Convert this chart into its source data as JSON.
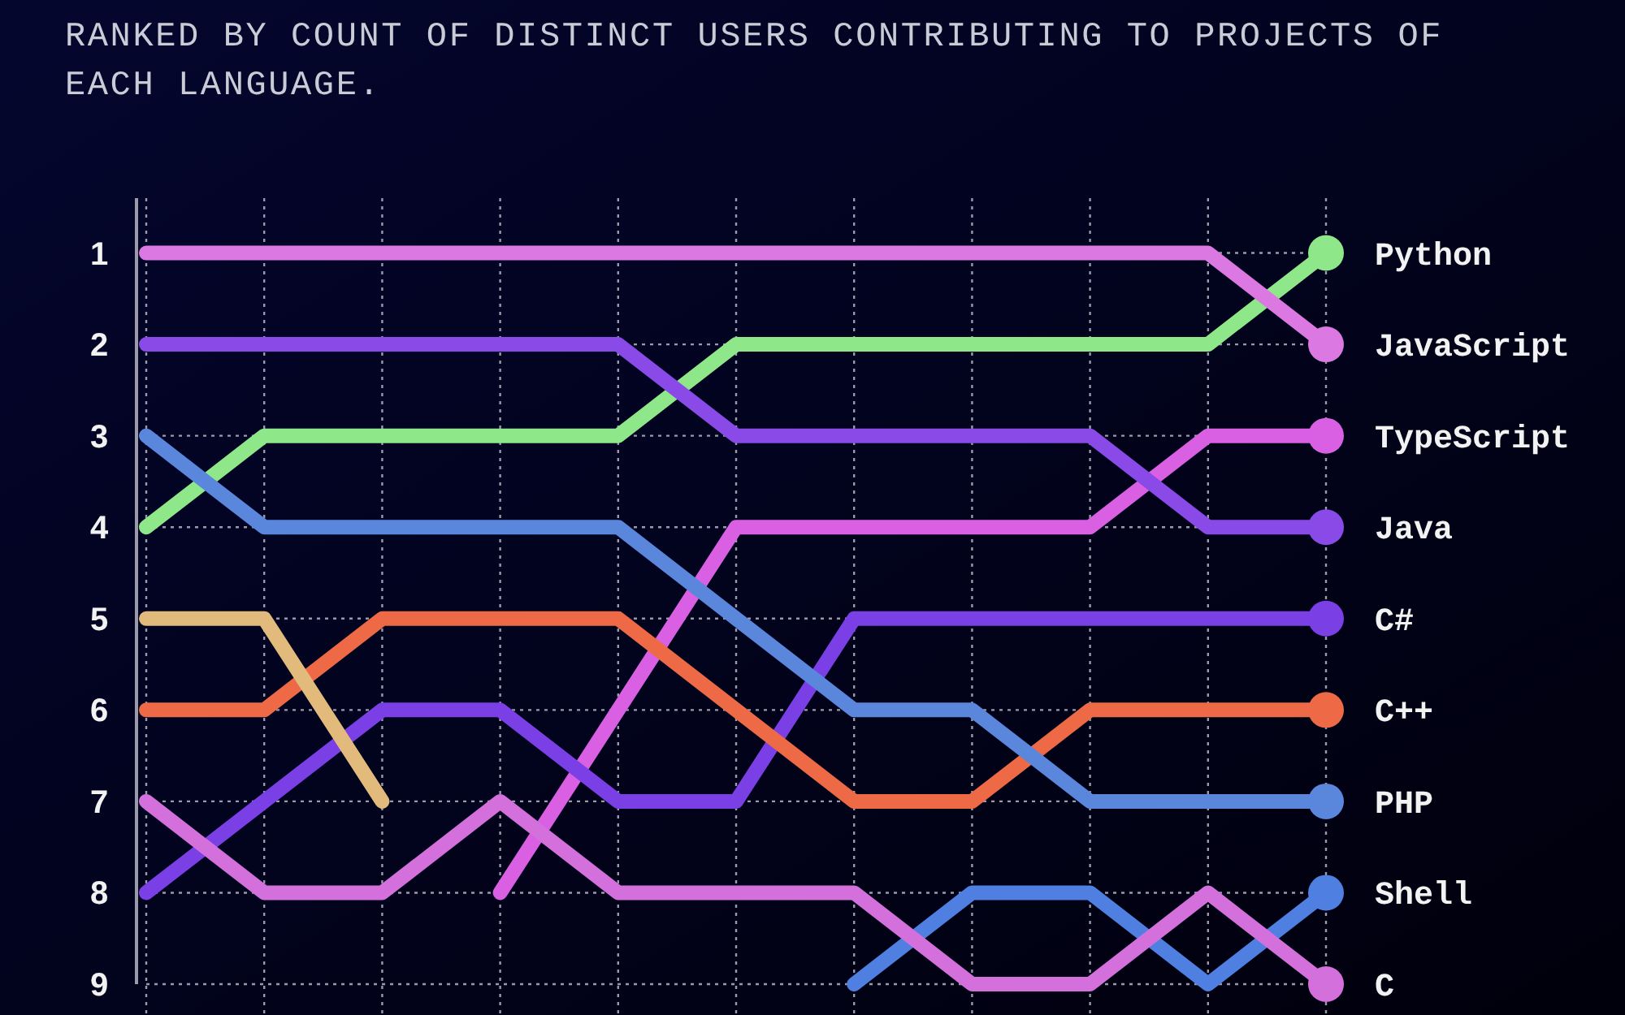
{
  "chart_data": {
    "type": "line",
    "title": "RANKED BY COUNT OF DISTINCT USERS CONTRIBUTING TO PROJECTS OF EACH LANGUAGE.",
    "categories": [
      null,
      null,
      null,
      null,
      null,
      null,
      null,
      null,
      null,
      null,
      null
    ],
    "ylim": [
      9,
      0.4
    ],
    "yticks": [
      1,
      2,
      3,
      4,
      5,
      6,
      7,
      8,
      9
    ],
    "grid": true,
    "legend": "right",
    "line_style": "solid",
    "series": [
      {
        "name": "Python",
        "color": "#8ee88a",
        "values": [
          4,
          3,
          3,
          3,
          3,
          2,
          2,
          2,
          2,
          2,
          1
        ]
      },
      {
        "name": "JavaScript",
        "color": "#dc78e2",
        "values": [
          1,
          1,
          1,
          1,
          1,
          1,
          1,
          1,
          1,
          1,
          2
        ]
      },
      {
        "name": "TypeScript",
        "color": "#d95fe3",
        "values": [
          null,
          null,
          null,
          8,
          6,
          4,
          4,
          4,
          4,
          3,
          3
        ]
      },
      {
        "name": "Java",
        "color": "#8a4ae8",
        "values": [
          2,
          2,
          2,
          2,
          2,
          3,
          3,
          3,
          3,
          4,
          4
        ]
      },
      {
        "name": "C#",
        "color": "#7b3fe6",
        "values": [
          8,
          7,
          6,
          6,
          7,
          7,
          5,
          5,
          5,
          5,
          5
        ]
      },
      {
        "name": "C++",
        "color": "#ee6a47",
        "values": [
          6,
          6,
          5,
          5,
          5,
          6,
          7,
          7,
          6,
          6,
          6
        ]
      },
      {
        "name": "PHP",
        "color": "#5a86dc",
        "values": [
          3,
          4,
          4,
          4,
          4,
          5,
          6,
          6,
          7,
          7,
          7
        ]
      },
      {
        "name": "Shell",
        "color": "#4f7fe0",
        "values": [
          null,
          null,
          null,
          null,
          null,
          null,
          9,
          8,
          8,
          9,
          8
        ]
      },
      {
        "color": "#e2ba7c",
        "values": [
          5,
          5,
          7,
          null,
          null,
          null,
          null,
          null,
          null,
          null,
          null
        ]
      },
      {
        "name": "C",
        "color": "#d470dc",
        "values": [
          7,
          8,
          8,
          7,
          8,
          8,
          8,
          9,
          9,
          8,
          9
        ]
      }
    ]
  }
}
